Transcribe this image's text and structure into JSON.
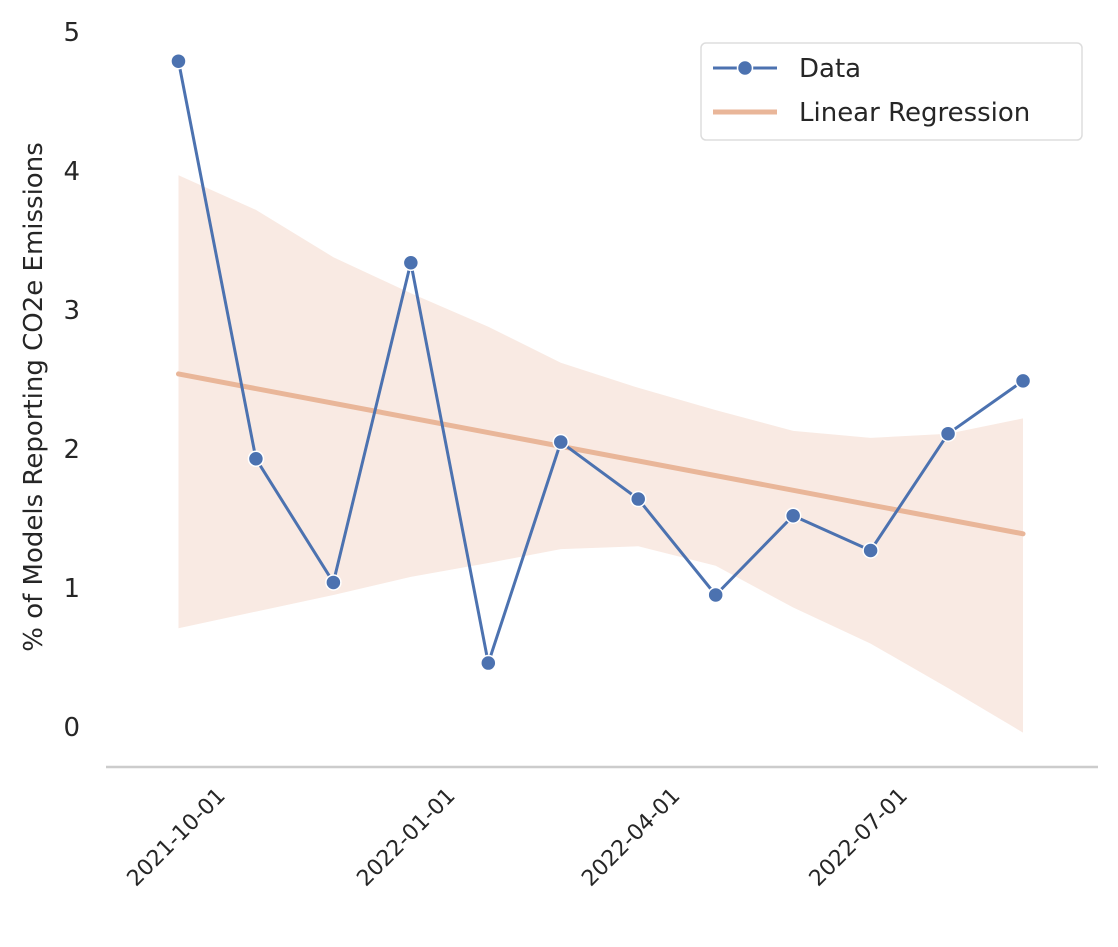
{
  "chart_data": {
    "type": "line",
    "title": "",
    "xlabel": "",
    "ylabel": "% of Models Reporting CO2e Emissions",
    "x": [
      "2021-09-15",
      "2021-10-16",
      "2021-11-16",
      "2021-12-17",
      "2022-01-17",
      "2022-02-15",
      "2022-03-18",
      "2022-04-18",
      "2022-05-19",
      "2022-06-19",
      "2022-07-20",
      "2022-08-19"
    ],
    "series": [
      {
        "name": "Data",
        "color": "#4c72b0",
        "marker": "circle",
        "values": [
          4.79,
          1.93,
          1.04,
          3.34,
          0.46,
          2.05,
          1.64,
          0.95,
          1.52,
          1.27,
          2.11,
          2.49
        ]
      },
      {
        "name": "Linear Regression",
        "color": "#e9b699",
        "start": 2.54,
        "end": 1.39,
        "confidence_band": {
          "color": "#f9eae3",
          "upper": [
            3.97,
            3.72,
            3.38,
            3.12,
            2.88,
            2.62,
            2.44,
            2.28,
            2.13,
            2.08,
            2.11,
            2.22
          ],
          "lower": [
            0.71,
            0.83,
            0.95,
            1.08,
            1.18,
            1.28,
            1.3,
            1.16,
            0.86,
            0.6,
            0.28,
            -0.04
          ]
        }
      }
    ],
    "xticks": [
      "2021-10-01",
      "2022-01-01",
      "2022-04-01",
      "2022-07-01"
    ],
    "yticks": [
      0,
      1,
      2,
      3,
      4,
      5
    ],
    "ylim": [
      -0.28,
      5
    ],
    "xlim": [
      "2021-08-17",
      "2022-09-18"
    ],
    "legend": {
      "position": "top-right",
      "entries": [
        "Data",
        "Linear Regression"
      ]
    },
    "grid": false
  }
}
